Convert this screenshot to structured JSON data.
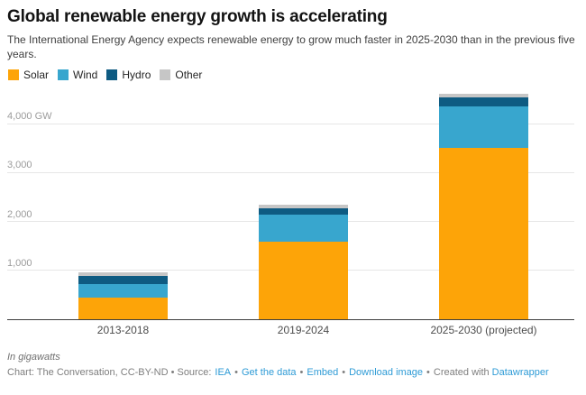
{
  "header": {
    "title": "Global renewable energy growth is accelerating",
    "subtitle": "The International Energy Agency expects renewable energy to grow much faster in 2025-2030 than in the previous five years."
  },
  "colors": {
    "solar": "#FDA408",
    "wind": "#38A6CE",
    "hydro": "#0E5B82",
    "other": "#C6C6C6",
    "link": "#2E9BD6",
    "gridline": "#E6E6E6",
    "axis_line": "#3C3C3C",
    "tick_label": "#9B9B9B"
  },
  "chart_data": {
    "type": "bar",
    "stacked": true,
    "title": "Global renewable energy growth is accelerating",
    "unit": "GW",
    "xlabel": "",
    "ylabel": "In gigawatts",
    "categories": [
      "2013-2018",
      "2019-2024",
      "2025-2030 (projected)"
    ],
    "series": [
      {
        "name": "Solar",
        "color": "#FDA408",
        "values": [
          440,
          1600,
          3510
        ]
      },
      {
        "name": "Wind",
        "color": "#38A6CE",
        "values": [
          280,
          540,
          860
        ]
      },
      {
        "name": "Hydro",
        "color": "#0E5B82",
        "values": [
          170,
          135,
          185
        ]
      },
      {
        "name": "Other",
        "color": "#C6C6C6",
        "values": [
          75,
          70,
          75
        ]
      }
    ],
    "totals": [
      965,
      2345,
      4630
    ],
    "y_axis": {
      "ticks": [
        1000,
        2000,
        3000,
        4000
      ],
      "tick_labels": [
        "1,000",
        "2,000",
        "3,000",
        "4,000 GW"
      ],
      "ylim": [
        0,
        4700
      ],
      "gridlines": true
    },
    "legend_position": "top"
  },
  "footer": {
    "note": "In gigawatts",
    "credit_prefix": "Chart: The Conversation, CC-BY-ND • Source:",
    "separator": "•",
    "created_with": "Created with",
    "links": {
      "source": "IEA",
      "get_data": "Get the data",
      "embed": "Embed",
      "download_image": "Download image",
      "datawrapper": "Datawrapper"
    }
  }
}
